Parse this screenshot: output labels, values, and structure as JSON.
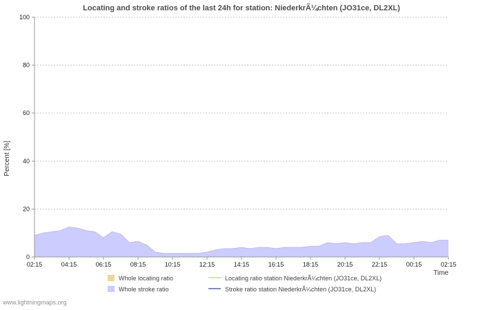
{
  "title": "Locating and stroke ratios of the last 24h for station: NiederkrÃ¼chten (JO31ce, DL2XL)",
  "watermark": "www.lightningmaps.org",
  "axes": {
    "y_label": "Percent [%]",
    "x_label": "Time",
    "y_ticks": [
      0,
      20,
      40,
      60,
      80,
      100
    ],
    "x_ticks": [
      "02:15",
      "04:15",
      "06:15",
      "08:15",
      "10:15",
      "12:15",
      "14:15",
      "16:15",
      "18:15",
      "20:15",
      "22:15",
      "00:15",
      "02:15"
    ]
  },
  "legend": {
    "items": [
      {
        "label": "Whole locating ratio",
        "swatch": "area",
        "color": "#f2d698"
      },
      {
        "label": "Whole stroke ratio",
        "swatch": "area",
        "color": "#ccccff"
      },
      {
        "label": "Locating ratio station NiederkrÃ¼chten (JO31ce, DL2XL)",
        "swatch": "line",
        "color": "#ffcc66"
      },
      {
        "label": "Stroke ratio station NiederkrÃ¼chten (JO31ce, DL2XL)",
        "swatch": "line",
        "color": "#62629e"
      }
    ]
  },
  "chart_data": {
    "type": "area",
    "title": "Locating and stroke ratios of the last 24h for station: NiederkrÃ¼chten (JO31ce, DL2XL)",
    "xlabel": "Time",
    "ylabel": "Percent [%]",
    "ylim": [
      0,
      100
    ],
    "grid": true,
    "legend_position": "bottom",
    "x": [
      "02:15",
      "02:45",
      "03:15",
      "03:45",
      "04:15",
      "04:45",
      "05:15",
      "05:45",
      "06:15",
      "06:45",
      "07:15",
      "07:45",
      "08:15",
      "08:45",
      "09:15",
      "09:45",
      "10:15",
      "10:45",
      "11:15",
      "11:45",
      "12:15",
      "12:45",
      "13:15",
      "13:45",
      "14:15",
      "14:45",
      "15:15",
      "15:45",
      "16:15",
      "16:45",
      "17:15",
      "17:45",
      "18:15",
      "18:45",
      "19:15",
      "19:45",
      "20:15",
      "20:45",
      "21:15",
      "21:45",
      "22:15",
      "22:45",
      "23:15",
      "23:45",
      "00:15",
      "00:45",
      "01:15",
      "01:45",
      "02:15"
    ],
    "series": [
      {
        "name": "Whole stroke ratio",
        "type": "area",
        "color": "#ccccff",
        "edge_color": "#bdbdf2",
        "values": [
          9,
          10,
          10.5,
          11,
          12.5,
          12,
          11,
          10.5,
          8,
          10.5,
          9.5,
          6,
          6.5,
          5,
          2,
          1.5,
          1.5,
          1.5,
          1.5,
          1.5,
          2,
          3,
          3.5,
          3.5,
          4,
          3.5,
          4,
          4,
          3.5,
          4,
          4,
          4,
          4.5,
          4.5,
          6,
          5.5,
          6,
          5.5,
          6,
          6,
          8.5,
          9,
          5.5,
          5.5,
          6,
          6.5,
          6,
          7,
          7
        ]
      }
    ]
  }
}
